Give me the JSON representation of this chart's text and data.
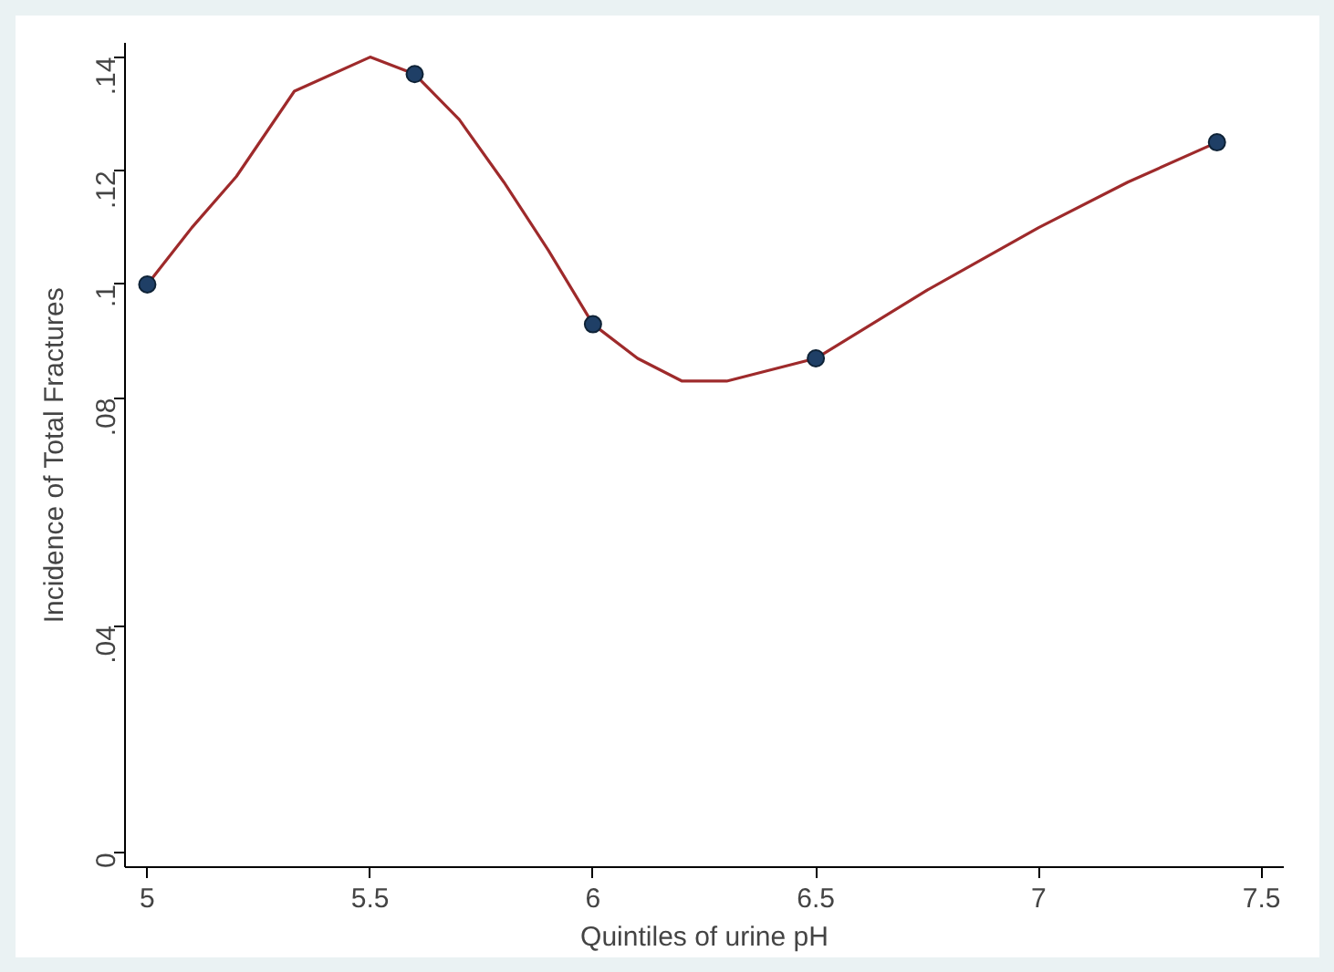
{
  "chart_data": {
    "type": "scatter",
    "xlabel": "Quintiles of urine pH",
    "ylabel": "Incidence of Total Fractures",
    "x": [
      5,
      5.6,
      6,
      6.5,
      7.4
    ],
    "series": [
      {
        "type": "line",
        "color": "#9e2a2b",
        "marker": "none",
        "line_style": "solid",
        "x": [
          5,
          5.1,
          5.2,
          5.33,
          5.5,
          5.6,
          5.7,
          5.8,
          5.9,
          6,
          6.1,
          6.2,
          6.3,
          6.4,
          6.5,
          6.75,
          7,
          7.2,
          7.4
        ],
        "values": [
          0.1,
          0.11,
          0.119,
          0.134,
          0.14,
          0.137,
          0.129,
          0.118,
          0.106,
          0.093,
          0.087,
          0.083,
          0.083,
          0.085,
          0.087,
          0.099,
          0.11,
          0.118,
          0.125
        ]
      },
      {
        "color": "#1f3f66",
        "marker": "circle",
        "values": [
          0.1,
          0.137,
          0.093,
          0.087,
          0.125
        ]
      }
    ],
    "xlim": [
      4.95,
      7.55
    ],
    "ylim": [
      -0.0025,
      0.1425
    ],
    "xticks": [
      5,
      5.5,
      6,
      6.5,
      7,
      7.5
    ],
    "yticks": [
      0,
      {
        "value": 0.04,
        "label": ".04"
      },
      {
        "value": 0.08,
        "label": ".08"
      },
      {
        "value": 0.1,
        "label": ".1"
      },
      {
        "value": 0.12,
        "label": ".12"
      },
      {
        "value": 0.14,
        "label": ".14"
      }
    ],
    "grid": false
  }
}
